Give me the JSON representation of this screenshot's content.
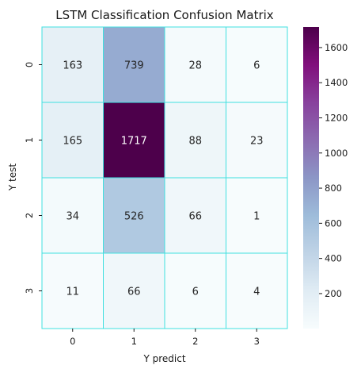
{
  "chart_data": {
    "type": "heatmap",
    "title": "LSTM Classification Confusion Matrix",
    "xlabel": "Y predict",
    "ylabel": "Y test",
    "x_categories": [
      "0",
      "1",
      "2",
      "3"
    ],
    "y_categories": [
      "0",
      "1",
      "2",
      "3"
    ],
    "values": [
      [
        163,
        739,
        28,
        6
      ],
      [
        165,
        1717,
        88,
        23
      ],
      [
        34,
        526,
        66,
        1
      ],
      [
        11,
        66,
        6,
        4
      ]
    ],
    "colorbar": {
      "range": [
        1,
        1717
      ],
      "ticks": [
        "200",
        "400",
        "600",
        "800",
        "1000",
        "1200",
        "1400",
        "1600"
      ],
      "colormap": "BuPu"
    },
    "gridline_color": "#40e0e0"
  }
}
